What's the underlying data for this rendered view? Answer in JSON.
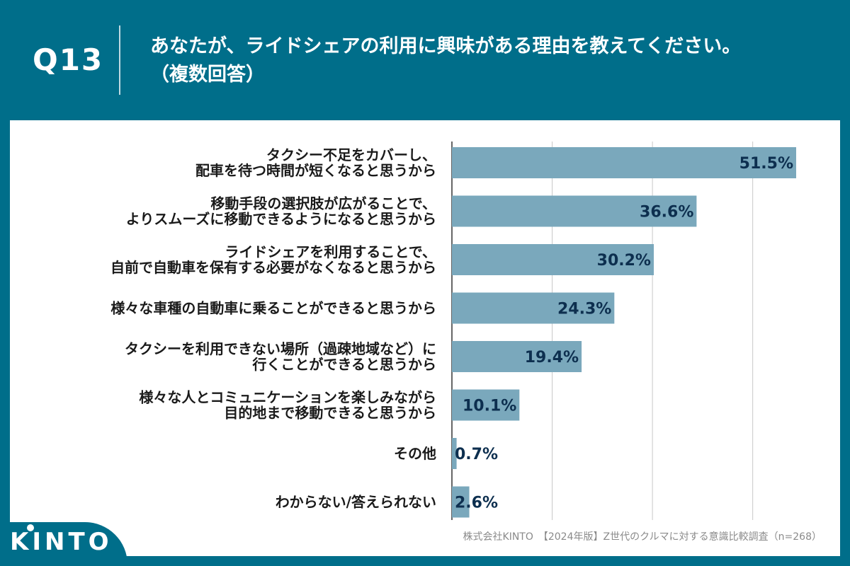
{
  "header": {
    "question_number": "Q13",
    "question_text_line1": "あなたが、ライドシェアの利用に興味がある理由を教えてください。",
    "question_text_line2": "（複数回答）"
  },
  "footer": {
    "brand": "KINTO",
    "source": "株式会社KINTO　【2024年版】Z世代のクルマに対する意識比較調査（n=268）"
  },
  "colors": {
    "background": "#006e8a",
    "bar": "#7aa8bc",
    "value_text": "#0d2f4f",
    "gridline": "#c8c8c8"
  },
  "chart_data": {
    "type": "bar",
    "orientation": "horizontal",
    "unit": "%",
    "categories": [
      [
        "タクシー不足をカバーし、",
        "配車を待つ時間が短くなると思うから"
      ],
      [
        "移動手段の選択肢が広がることで、",
        "よりスムーズに移動できるようになると思うから"
      ],
      [
        "ライドシェアを利用することで、",
        "自前で自動車を保有する必要がなくなると思うから"
      ],
      [
        "様々な車種の自動車に乗ることができると思うから"
      ],
      [
        "タクシーを利用できない場所（過疎地域など）に",
        "行くことができると思うから"
      ],
      [
        "様々な人とコミュニケーションを楽しみながら",
        "目的地まで移動できると思うから"
      ],
      [
        "その他"
      ],
      [
        "わからない/答えられない"
      ]
    ],
    "values": [
      51.5,
      36.6,
      30.2,
      24.3,
      19.4,
      10.1,
      0.7,
      2.6
    ],
    "value_labels": [
      "51.5%",
      "36.6%",
      "30.2%",
      "24.3%",
      "19.4%",
      "10.1%",
      "0.7%",
      "2.6%"
    ],
    "xlim": [
      0,
      60
    ],
    "gridlines": [
      15,
      30,
      45
    ],
    "grid": true
  }
}
